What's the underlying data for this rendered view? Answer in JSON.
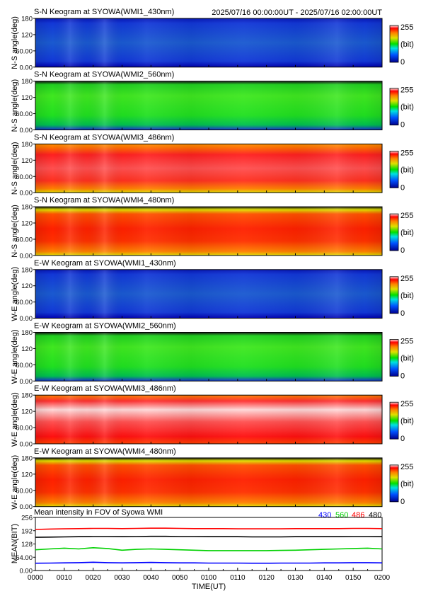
{
  "header": {
    "time_range": "2025/07/16 00:00:00UT - 2025/07/16 02:00:00UT"
  },
  "keograms": [
    {
      "title": "S-N Keogram at SYOWA(WMI1_430nm)",
      "ylabel": "N-S angle(deg)",
      "scheme": "blue"
    },
    {
      "title": "S-N Keogram at SYOWA(WMI2_560nm)",
      "ylabel": "N-S angle(deg)",
      "scheme": "green"
    },
    {
      "title": "S-N Keogram at SYOWA(WMI3_486nm)",
      "ylabel": "N-S angle(deg)",
      "scheme": "red"
    },
    {
      "title": "S-N Keogram at SYOWA(WMI4_480nm)",
      "ylabel": "N-S angle(deg)",
      "scheme": "orange"
    },
    {
      "title": "E-W Keogram at SYOWA(WMI1_430nm)",
      "ylabel": "W-E angle(deg)",
      "scheme": "blue"
    },
    {
      "title": "E-W Keogram at SYOWA(WMI2_560nm)",
      "ylabel": "W-E angle(deg)",
      "scheme": "green"
    },
    {
      "title": "E-W Keogram at SYOWA(WMI3_486nm)",
      "ylabel": "W-E angle(deg)",
      "scheme": "redwhite"
    },
    {
      "title": "E-W Keogram at SYOWA(WMI4_480nm)",
      "ylabel": "W-E angle(deg)",
      "scheme": "orange"
    }
  ],
  "keogram_yticks": [
    "180",
    "120",
    "60.00",
    "0.00"
  ],
  "keogram_ytick_values": [
    180,
    120,
    60,
    0
  ],
  "colorbar": {
    "max_label": "255",
    "min_label": "0",
    "unit": "(bit)"
  },
  "chart_data": {
    "type": "line",
    "title": "Mean intensity in FOV of Syowa WMI",
    "xlabel": "TIME(UT)",
    "ylabel": "MEAN(BIT)",
    "ylim": [
      0,
      256
    ],
    "xlim": [
      0,
      120
    ],
    "yticks": [
      "256",
      "192",
      "128",
      "64.00",
      "0.00"
    ],
    "ytick_values": [
      256,
      192,
      128,
      64,
      0
    ],
    "xticks": [
      "0000",
      "0010",
      "0020",
      "0030",
      "0040",
      "0050",
      "0100",
      "0110",
      "0120",
      "0130",
      "0140",
      "0150",
      "0200"
    ],
    "xtick_values": [
      0,
      10,
      20,
      30,
      40,
      50,
      60,
      70,
      80,
      90,
      100,
      110,
      120
    ],
    "x": [
      0,
      5,
      10,
      15,
      20,
      25,
      30,
      35,
      40,
      45,
      50,
      55,
      60,
      65,
      70,
      75,
      80,
      85,
      90,
      95,
      100,
      105,
      110,
      115,
      120
    ],
    "series": [
      {
        "name": "430",
        "color": "#0000ff",
        "values": [
          35,
          36,
          37,
          38,
          40,
          38,
          37,
          38,
          39,
          38,
          37,
          37,
          36,
          36,
          36,
          35,
          35,
          36,
          36,
          36,
          37,
          37,
          38,
          38,
          37
        ]
      },
      {
        "name": "560",
        "color": "#00d000",
        "values": [
          100,
          104,
          108,
          104,
          110,
          106,
          98,
          102,
          104,
          102,
          100,
          98,
          96,
          96,
          96,
          96,
          96,
          97,
          98,
          100,
          102,
          104,
          106,
          108,
          104
        ]
      },
      {
        "name": "486",
        "color": "#ff0000",
        "values": [
          198,
          200,
          201,
          202,
          203,
          203,
          202,
          203,
          204,
          204,
          203,
          202,
          202,
          202,
          201,
          201,
          201,
          201,
          202,
          202,
          202,
          202,
          203,
          203,
          202
        ]
      },
      {
        "name": "480",
        "color": "#000000",
        "values": [
          160,
          161,
          162,
          163,
          164,
          164,
          163,
          164,
          165,
          165,
          164,
          164,
          163,
          163,
          163,
          162,
          162,
          162,
          163,
          163,
          163,
          163,
          164,
          164,
          163
        ]
      }
    ]
  }
}
